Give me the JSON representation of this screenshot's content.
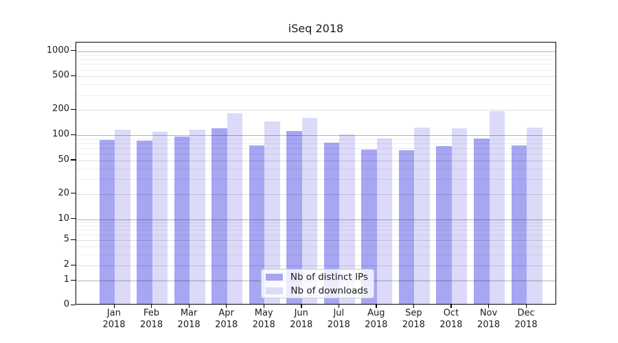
{
  "title": "iSeq 2018",
  "legend": {
    "items": [
      {
        "label": "Nb of distinct IPs",
        "color": "#a6a6f3"
      },
      {
        "label": "Nb of downloads",
        "color": "#dbdbf9"
      }
    ]
  },
  "chart_data": {
    "type": "bar",
    "title": "iSeq 2018",
    "categories": [
      "Jan",
      "Feb",
      "Mar",
      "Apr",
      "May",
      "Jun",
      "Jul",
      "Aug",
      "Sep",
      "Oct",
      "Nov",
      "Dec"
    ],
    "year_label": "2018",
    "series": [
      {
        "name": "Nb of distinct IPs",
        "color": "#a6a6f3",
        "values": [
          84,
          83,
          92,
          117,
          72,
          108,
          79,
          65,
          64,
          71,
          88,
          72
        ]
      },
      {
        "name": "Nb of downloads",
        "color": "#dbdbf9",
        "values": [
          113,
          105,
          111,
          176,
          141,
          153,
          99,
          88,
          118,
          116,
          187,
          119
        ]
      }
    ],
    "ylabel": "",
    "xlabel": "",
    "yscale": "symlog",
    "yticks": [
      0,
      1,
      2,
      5,
      10,
      20,
      50,
      100,
      200,
      500,
      1000
    ],
    "ylim": [
      0,
      1500
    ],
    "grid": true,
    "grid_on_top_of_bars": true,
    "legend_position": "inside lower-center"
  }
}
